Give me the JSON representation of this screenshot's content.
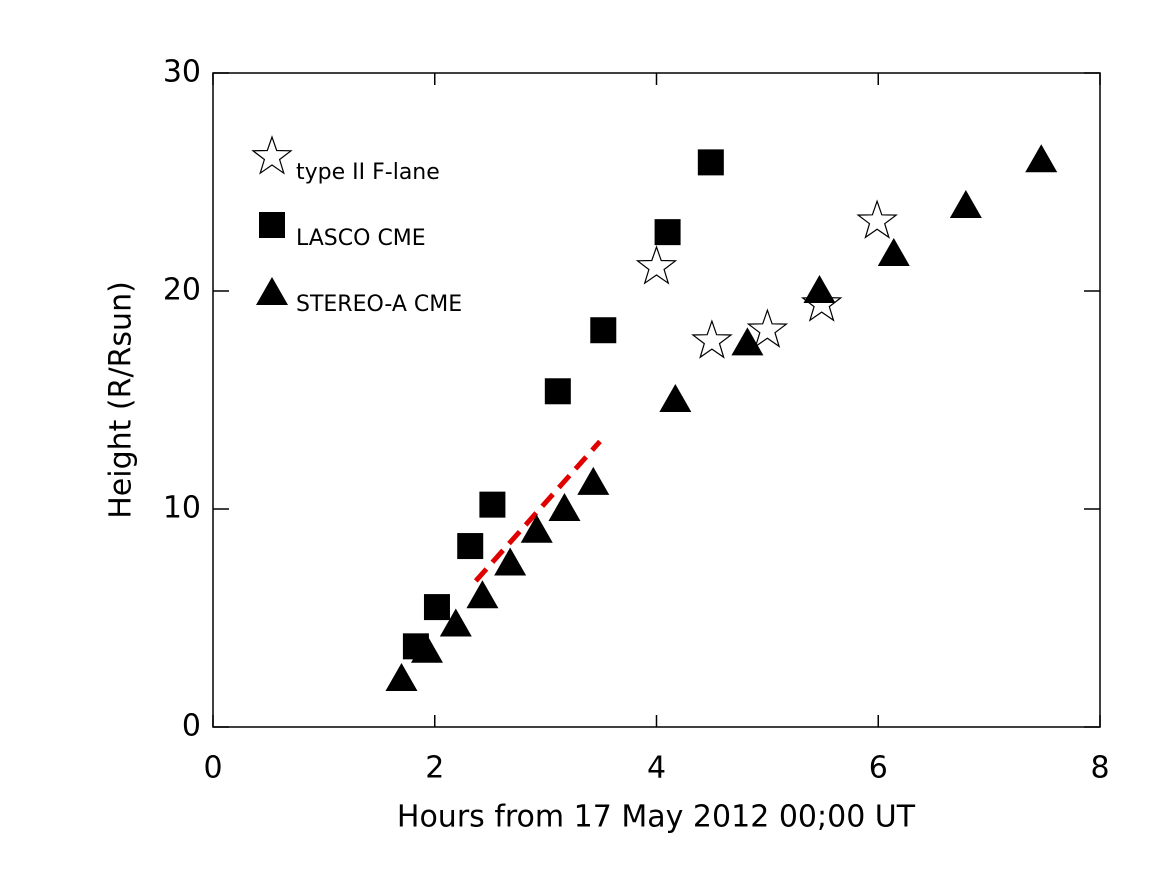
{
  "chart_data": {
    "type": "scatter",
    "x_label": "Hours from 17 May 2012 00;00 UT",
    "y_label": "Height (R/Rsun)",
    "xlim": [
      0,
      8
    ],
    "ylim": [
      0,
      30
    ],
    "xticks": [
      0,
      2,
      4,
      6,
      8
    ],
    "yticks": [
      0,
      10,
      20,
      30
    ],
    "series": [
      {
        "name": "type II F-lane",
        "marker": "star",
        "color": "#000000",
        "x": [
          4.0,
          4.5,
          5.0,
          5.49,
          5.99
        ],
        "values": [
          21.1,
          17.7,
          18.2,
          19.4,
          23.2
        ]
      },
      {
        "name": "LASCO CME",
        "marker": "square",
        "color": "#000000",
        "x": [
          1.83,
          2.02,
          2.32,
          2.52,
          3.11,
          3.52,
          4.1,
          4.49
        ],
        "values": [
          3.7,
          5.5,
          8.3,
          10.2,
          15.4,
          18.2,
          22.7,
          25.9
        ]
      },
      {
        "name": "STEREO-A CME",
        "marker": "triangle",
        "color": "#000000",
        "x": [
          1.7,
          1.93,
          2.19,
          2.43,
          2.68,
          2.92,
          3.17,
          3.43,
          4.17,
          4.82,
          5.47,
          6.14,
          6.79,
          7.47
        ],
        "values": [
          2.2,
          3.5,
          4.7,
          6.0,
          7.5,
          9.0,
          10.0,
          11.2,
          15.0,
          17.6,
          20.0,
          21.7,
          23.9,
          26.0
        ]
      }
    ],
    "fit_line": {
      "color": "#e00000",
      "x": [
        2.37,
        3.49
      ],
      "values": [
        6.7,
        13.1
      ]
    }
  }
}
